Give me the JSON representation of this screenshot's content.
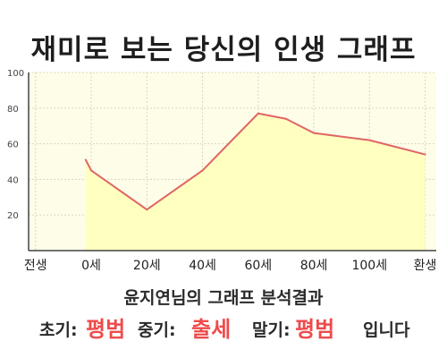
{
  "page": {
    "title": "재미로 보는 당신의 인생 그래프"
  },
  "chart_data": {
    "type": "area",
    "x": [
      -2,
      0,
      20,
      40,
      60,
      70,
      80,
      100,
      120
    ],
    "x_ticks": [
      "전생",
      "0세",
      "20세",
      "40세",
      "60세",
      "80세",
      "100세",
      "환생"
    ],
    "x_tick_values": [
      -20,
      0,
      20,
      40,
      60,
      80,
      100,
      120
    ],
    "y": [
      51,
      45,
      23,
      45,
      77,
      74,
      66,
      62,
      54
    ],
    "ylim": [
      0,
      100
    ],
    "y_ticks": [
      "100",
      "80",
      "60",
      "40",
      "20"
    ],
    "y_tick_values": [
      100,
      80,
      60,
      40,
      20
    ],
    "grid": true,
    "line_color": "#e06464",
    "fill_color": "#ffffc0",
    "background_color": "#fefee8"
  },
  "analysis": {
    "title": "윤지연님의 그래프 분석결과",
    "early_label": "초기:",
    "early_value": "평범",
    "middle_label": "중기:",
    "middle_value": "출세",
    "late_label": "말기:",
    "late_value": "평범",
    "ending": "입니다",
    "highlight_color": "#ee4b4b"
  }
}
